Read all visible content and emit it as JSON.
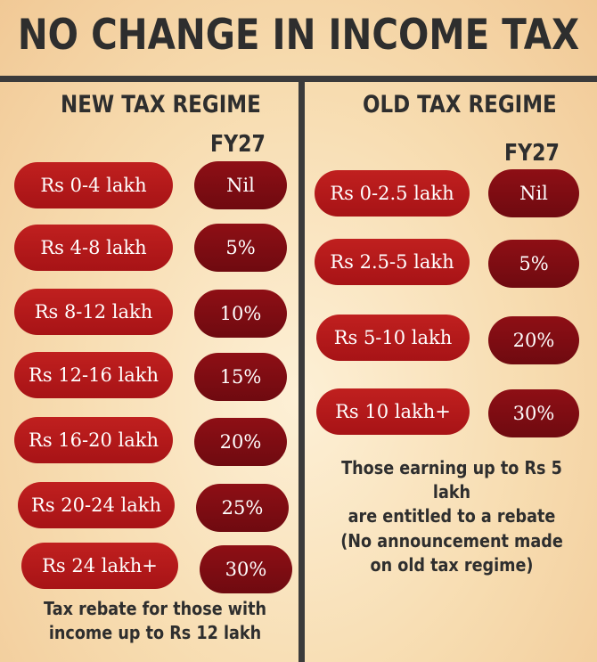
{
  "title": "NO CHANGE IN INCOME TAX",
  "new_regime": {
    "heading": "NEW TAX REGIME",
    "column_label": "FY27",
    "slabs": [
      {
        "range": "Rs 0-4 lakh",
        "rate": "Nil"
      },
      {
        "range": "Rs 4-8 lakh",
        "rate": "5%"
      },
      {
        "range": "Rs 8-12 lakh",
        "rate": "10%"
      },
      {
        "range": "Rs 12-16 lakh",
        "rate": "15%"
      },
      {
        "range": "Rs 16-20 lakh",
        "rate": "20%"
      },
      {
        "range": "Rs 20-24 lakh",
        "rate": "25%"
      },
      {
        "range": "Rs 24 lakh+",
        "rate": "30%"
      }
    ],
    "note_line1": "Tax rebate for those with",
    "note_line2": "income up to Rs 12 lakh"
  },
  "old_regime": {
    "heading": "OLD TAX REGIME",
    "column_label": "FY27",
    "slabs": [
      {
        "range": "Rs 0-2.5 lakh",
        "rate": "Nil"
      },
      {
        "range": "Rs 2.5-5 lakh",
        "rate": "5%"
      },
      {
        "range": "Rs 5-10 lakh",
        "rate": "20%"
      },
      {
        "range": "Rs 10 lakh+",
        "rate": "30%"
      }
    ],
    "note_line1": "Those earning up to Rs 5 lakh",
    "note_line2": "are entitled to a rebate",
    "note2_line1": "(No announcement made",
    "note2_line2": "on old tax regime)"
  },
  "colors": {
    "pill": "#b5181a",
    "rate_pill": "#7d0c12",
    "text_dark": "#2e2e2e",
    "divider": "#3b3b3b"
  }
}
